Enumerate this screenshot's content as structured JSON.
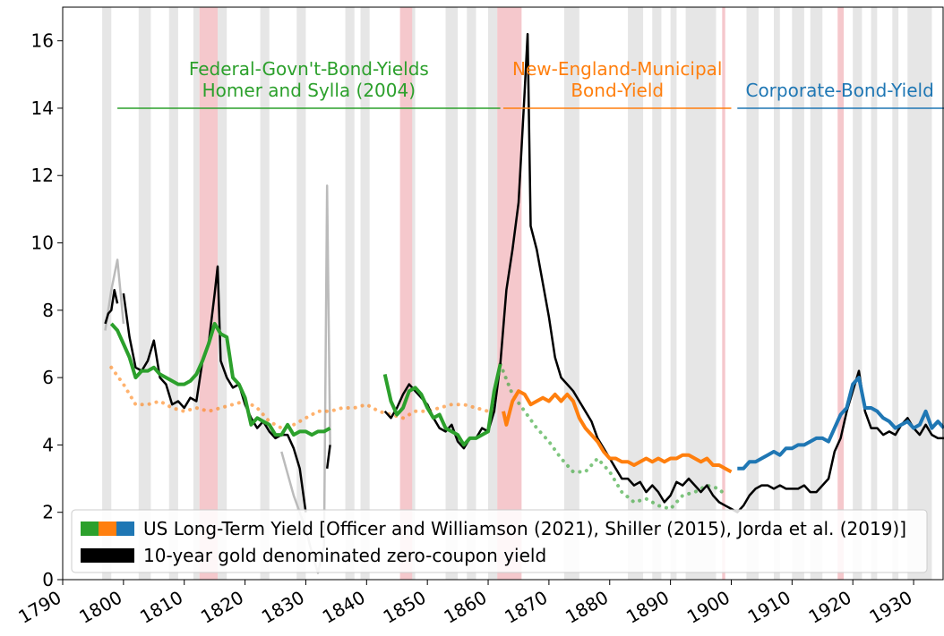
{
  "chart_data": {
    "type": "line",
    "xlim": [
      1790,
      1935
    ],
    "ylim": [
      0,
      17
    ],
    "xticks": [
      1790,
      1800,
      1810,
      1820,
      1830,
      1840,
      1850,
      1860,
      1870,
      1880,
      1890,
      1900,
      1910,
      1920,
      1930
    ],
    "yticks": [
      0,
      2,
      4,
      6,
      8,
      10,
      12,
      14,
      16
    ],
    "gray_bands": [
      [
        1796.5,
        1798
      ],
      [
        1802.5,
        1804.5
      ],
      [
        1807.5,
        1809
      ],
      [
        1811.5,
        1812.5
      ],
      [
        1815.5,
        1817
      ],
      [
        1822.5,
        1824
      ],
      [
        1828.5,
        1830
      ],
      [
        1836.5,
        1838
      ],
      [
        1839,
        1840.5
      ],
      [
        1847,
        1848
      ],
      [
        1853,
        1855
      ],
      [
        1856.5,
        1858
      ],
      [
        1860,
        1861.5
      ],
      [
        1872.5,
        1875
      ],
      [
        1883,
        1885.5
      ],
      [
        1887,
        1888.5
      ],
      [
        1890,
        1891
      ],
      [
        1892.5,
        1897.5
      ],
      [
        1902.5,
        1904.5
      ],
      [
        1907,
        1908
      ],
      [
        1910,
        1912
      ],
      [
        1913,
        1915
      ],
      [
        1920,
        1921.5
      ],
      [
        1923,
        1924
      ],
      [
        1926.5,
        1927.5
      ],
      [
        1929,
        1933
      ]
    ],
    "red_bands": [
      [
        1812.5,
        1815.5
      ],
      [
        1845.5,
        1847.5
      ],
      [
        1861.5,
        1865.5
      ],
      [
        1898.5,
        1899
      ],
      [
        1917.5,
        1918.5
      ]
    ],
    "annotations": [
      {
        "lines": [
          "Federal-Govn't-Bond-Yields",
          "Homer and Sylla (2004)"
        ],
        "color": "#2ca02c",
        "from": 1799,
        "to": 1862,
        "y": 14
      },
      {
        "lines": [
          "New-England-Municipal",
          "Bond-Yield"
        ],
        "color": "#ff7f0e",
        "from": 1862.5,
        "to": 1900,
        "y": 14
      },
      {
        "lines": [
          "Corporate-Bond-Yield"
        ],
        "color": "#1f77b4",
        "from": 1901,
        "to": 1935,
        "y": 14
      }
    ],
    "series": [
      {
        "color": "#bbbbbb",
        "width": 2.5,
        "dash": false,
        "x": [
          1797,
          1798,
          1799,
          1800,
          null,
          1826,
          1828,
          1830,
          1831,
          1832,
          1833,
          1833.5,
          1834
        ],
        "values": [
          7.4,
          8.6,
          9.5,
          7.6,
          null,
          3.8,
          2.5,
          1.5,
          0.8,
          0.2,
          1.0,
          11.7,
          4.0
        ]
      },
      {
        "color": "#ff7f0e",
        "width": 4,
        "dash": true,
        "opacity": 0.6,
        "x": [
          1798,
          1800,
          1802,
          1804,
          1806,
          1808,
          1810,
          1812,
          1814,
          1816,
          1818,
          1820,
          1822,
          1824,
          1826,
          1828,
          1830,
          1832,
          1834,
          1836,
          1838,
          1840,
          1842,
          1844,
          1846,
          1848,
          1850,
          1852,
          1854,
          1856,
          1858,
          1860,
          1862
        ],
        "values": [
          6.3,
          5.8,
          5.2,
          5.2,
          5.3,
          5.1,
          5.0,
          5.1,
          5.0,
          5.1,
          5.2,
          5.3,
          5.1,
          4.7,
          4.5,
          4.6,
          4.8,
          5.0,
          5.0,
          5.1,
          5.1,
          5.2,
          5.0,
          4.9,
          4.8,
          5.0,
          5.0,
          5.1,
          5.2,
          5.2,
          5.1,
          5.0,
          5.0
        ]
      },
      {
        "color": "#2ca02c",
        "width": 4,
        "dash": true,
        "opacity": 0.6,
        "x": [
          1862,
          1864,
          1866,
          1868,
          1870,
          1872,
          1874,
          1876,
          1878,
          1880,
          1882,
          1884,
          1886,
          1888,
          1890,
          1892,
          1894,
          1896,
          1898,
          1899
        ],
        "values": [
          6.4,
          5.5,
          5.0,
          4.5,
          4.1,
          3.6,
          3.2,
          3.2,
          3.6,
          3.2,
          2.6,
          2.3,
          2.4,
          2.2,
          2.1,
          2.5,
          2.6,
          2.8,
          2.7,
          2.5
        ]
      },
      {
        "color": "#000000",
        "width": 2.5,
        "dash": false,
        "x": [
          1797,
          1797.5,
          1798,
          1798.5,
          1799,
          null,
          1800,
          1801,
          1802,
          1803,
          1804,
          1805,
          1806,
          1807,
          1808,
          1809,
          1810,
          1811,
          1812,
          1813,
          1814,
          1815,
          1815.5,
          1816,
          1817,
          1818,
          1819,
          1820,
          1821,
          1822,
          1823,
          1824,
          1825,
          1826,
          1827,
          1828,
          1829,
          1830,
          null,
          1833.5,
          1834,
          null,
          1843,
          1844,
          1845,
          1846,
          1847,
          1848,
          1849,
          1850,
          1851,
          1852,
          1853,
          1854,
          1855,
          1856,
          1857,
          1858,
          1859,
          1860,
          1861,
          1862,
          1862.5,
          1863,
          1864,
          1865,
          1866,
          1866.5,
          1867,
          1868,
          1869,
          1870,
          1871,
          1872,
          1873,
          1874,
          1875,
          1876,
          1877,
          1878,
          1879,
          1880,
          1881,
          1882,
          1883,
          1884,
          1885,
          1886,
          1887,
          1888,
          1889,
          1890,
          1891,
          1892,
          1893,
          1894,
          1895,
          1896,
          1897,
          1898,
          1899,
          1900,
          1901,
          1902,
          1903,
          1904,
          1905,
          1906,
          1907,
          1908,
          1909,
          1910,
          1911,
          1912,
          1913,
          1914,
          1915,
          1916,
          1917,
          1918,
          1919,
          1920,
          1921,
          1922,
          1923,
          1924,
          1925,
          1926,
          1927,
          1928,
          1929,
          1930,
          1931,
          1932,
          1933,
          1934,
          1935
        ],
        "values": [
          7.6,
          7.9,
          8.0,
          8.6,
          8.2,
          null,
          8.5,
          7.2,
          6.3,
          6.2,
          6.5,
          7.1,
          6.0,
          5.8,
          5.2,
          5.3,
          5.1,
          5.4,
          5.3,
          6.5,
          7.0,
          8.5,
          9.3,
          6.5,
          6.0,
          5.7,
          5.8,
          5.2,
          4.8,
          4.5,
          4.7,
          4.4,
          4.2,
          4.3,
          4.3,
          3.9,
          3.3,
          2.0,
          null,
          3.3,
          4.0,
          null,
          5.0,
          4.8,
          5.1,
          5.5,
          5.8,
          5.6,
          5.4,
          5.2,
          4.8,
          4.5,
          4.4,
          4.6,
          4.1,
          3.9,
          4.2,
          4.2,
          4.5,
          4.4,
          5.0,
          6.4,
          7.5,
          8.6,
          9.8,
          11.2,
          14.5,
          16.2,
          10.5,
          9.8,
          8.8,
          7.8,
          6.6,
          6.0,
          5.8,
          5.6,
          5.3,
          5.0,
          4.7,
          4.2,
          3.9,
          3.6,
          3.3,
          3.0,
          3.0,
          2.8,
          2.9,
          2.6,
          2.8,
          2.6,
          2.3,
          2.5,
          2.9,
          2.8,
          3.0,
          2.8,
          2.6,
          2.8,
          2.5,
          2.3,
          2.2,
          2.1,
          2.0,
          2.2,
          2.5,
          2.7,
          2.8,
          2.8,
          2.7,
          2.8,
          2.7,
          2.7,
          2.7,
          2.8,
          2.6,
          2.6,
          2.8,
          3.0,
          3.8,
          4.2,
          5.0,
          5.6,
          6.2,
          5.0,
          4.5,
          4.5,
          4.3,
          4.4,
          4.3,
          4.6,
          4.8,
          4.5,
          4.3,
          4.6,
          4.3,
          4.2,
          4.2
        ]
      },
      {
        "color": "#2ca02c",
        "width": 4,
        "dash": false,
        "x": [
          1798,
          1799,
          1800,
          1801,
          1802,
          1803,
          1804,
          1805,
          1806,
          1807,
          1808,
          1809,
          1810,
          1811,
          1812,
          1813,
          1814,
          1815,
          1816,
          1817,
          1818,
          1819,
          1820,
          1821,
          1822,
          1823,
          1824,
          1825,
          1826,
          1827,
          1828,
          1829,
          1830,
          1831,
          1832,
          1833,
          1834,
          null,
          1843,
          1844,
          1845,
          1846,
          1847,
          1848,
          1849,
          1850,
          1851,
          1852,
          1853,
          1854,
          1855,
          1856,
          1857,
          1858,
          1859,
          1860,
          1861,
          1862
        ],
        "values": [
          7.6,
          7.4,
          7.0,
          6.6,
          6.0,
          6.2,
          6.2,
          6.3,
          6.1,
          6.0,
          5.9,
          5.8,
          5.8,
          5.9,
          6.1,
          6.5,
          7.0,
          7.6,
          7.3,
          7.2,
          6.0,
          5.8,
          5.4,
          4.6,
          4.8,
          4.7,
          4.6,
          4.3,
          4.3,
          4.6,
          4.3,
          4.4,
          4.4,
          4.3,
          4.4,
          4.4,
          4.5,
          null,
          6.1,
          5.3,
          4.9,
          5.1,
          5.6,
          5.7,
          5.5,
          5.1,
          4.8,
          4.9,
          4.5,
          4.4,
          4.3,
          4.0,
          4.2,
          4.2,
          4.3,
          4.4,
          5.6,
          6.4
        ]
      },
      {
        "color": "#ff7f0e",
        "width": 4,
        "dash": false,
        "x": [
          1862.5,
          1863,
          1864,
          1865,
          1866,
          1867,
          1868,
          1869,
          1870,
          1871,
          1872,
          1873,
          1874,
          1875,
          1876,
          1877,
          1878,
          1879,
          1880,
          1881,
          1882,
          1883,
          1884,
          1885,
          1886,
          1887,
          1888,
          1889,
          1890,
          1891,
          1892,
          1893,
          1894,
          1895,
          1896,
          1897,
          1898,
          1899,
          1900
        ],
        "values": [
          5.0,
          4.6,
          5.3,
          5.6,
          5.5,
          5.2,
          5.3,
          5.4,
          5.3,
          5.5,
          5.3,
          5.5,
          5.3,
          4.8,
          4.5,
          4.3,
          4.1,
          3.8,
          3.6,
          3.6,
          3.5,
          3.5,
          3.4,
          3.5,
          3.6,
          3.5,
          3.6,
          3.5,
          3.6,
          3.6,
          3.7,
          3.7,
          3.6,
          3.5,
          3.6,
          3.4,
          3.4,
          3.3,
          3.2
        ]
      },
      {
        "color": "#1f77b4",
        "width": 4,
        "dash": false,
        "x": [
          1901,
          1902,
          1903,
          1904,
          1905,
          1906,
          1907,
          1908,
          1909,
          1910,
          1911,
          1912,
          1913,
          1914,
          1915,
          1916,
          1917,
          1918,
          1919,
          1920,
          1921,
          1922,
          1923,
          1924,
          1925,
          1926,
          1927,
          1928,
          1929,
          1930,
          1931,
          1932,
          1933,
          1934,
          1935
        ],
        "values": [
          3.3,
          3.3,
          3.5,
          3.5,
          3.6,
          3.7,
          3.8,
          3.7,
          3.9,
          3.9,
          4.0,
          4.0,
          4.1,
          4.2,
          4.2,
          4.1,
          4.5,
          4.9,
          5.1,
          5.8,
          6.0,
          5.1,
          5.1,
          5.0,
          4.8,
          4.7,
          4.5,
          4.6,
          4.7,
          4.5,
          4.6,
          5.0,
          4.5,
          4.7,
          4.5
        ]
      }
    ],
    "legend": [
      {
        "label": "US Long-Term Yield [Officer and Williamson (2021), Shiller (2015), Jorda et al. (2019)]",
        "colors": [
          "#2ca02c",
          "#ff7f0e",
          "#1f77b4"
        ]
      },
      {
        "label": "10-year gold denominated zero-coupon yield",
        "colors": [
          "#000000"
        ]
      }
    ]
  }
}
